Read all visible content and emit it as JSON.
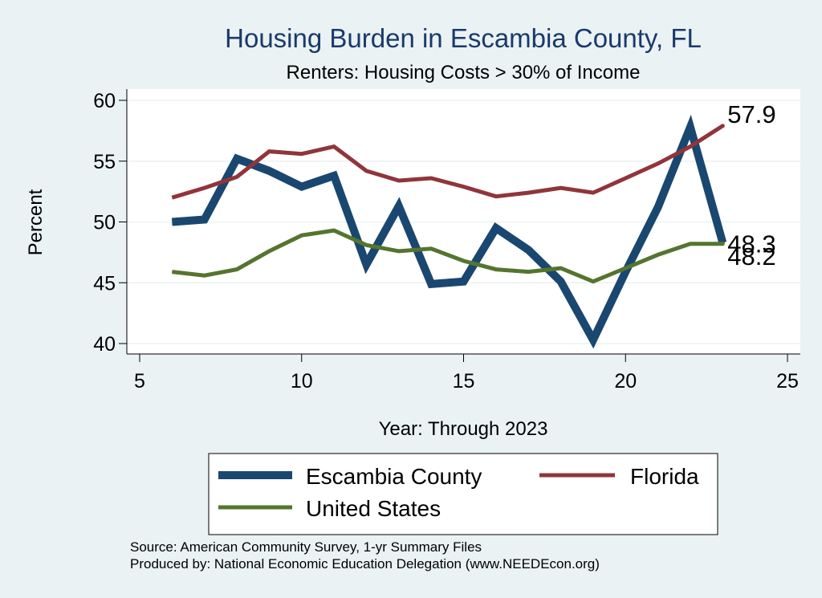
{
  "chart_data": {
    "type": "line",
    "title": "Housing Burden in Escambia County, FL",
    "subtitle": "Renters: Housing Costs > 30% of Income",
    "xlabel": "Year: Through 2023",
    "ylabel": "Percent",
    "xlim": [
      5,
      25
    ],
    "ylim": [
      40,
      60
    ],
    "xticks": [
      "5",
      "10",
      "15",
      "20",
      "25"
    ],
    "yticks": [
      "40",
      "45",
      "50",
      "55",
      "60"
    ],
    "x": [
      6,
      7,
      8,
      9,
      10,
      11,
      12,
      13,
      14,
      15,
      16,
      17,
      18,
      19,
      20,
      21,
      22,
      23
    ],
    "series": [
      {
        "name": "Escambia County",
        "color": "#1a476f",
        "values": [
          50.0,
          50.2,
          55.2,
          54.2,
          52.9,
          53.8,
          46.5,
          51.3,
          44.9,
          45.1,
          49.5,
          47.7,
          45.1,
          40.3,
          45.9,
          51.2,
          57.8,
          48.3
        ],
        "end_label": "48.3"
      },
      {
        "name": "Florida",
        "color": "#90353b",
        "values": [
          52.0,
          52.8,
          53.7,
          55.8,
          55.6,
          56.2,
          54.2,
          53.4,
          53.6,
          52.9,
          52.1,
          52.4,
          52.8,
          52.4,
          53.6,
          54.8,
          56.2,
          57.9
        ],
        "end_label": "57.9"
      },
      {
        "name": "United States",
        "color": "#55752f",
        "values": [
          45.9,
          45.6,
          46.1,
          47.6,
          48.9,
          49.3,
          48.1,
          47.6,
          47.8,
          46.8,
          46.1,
          45.9,
          46.2,
          45.1,
          46.2,
          47.3,
          48.2,
          48.2
        ],
        "end_label": "48.2"
      }
    ],
    "legend": {
      "position": "bottom",
      "entries": [
        "Escambia County",
        "Florida",
        "United States"
      ]
    }
  },
  "source_line": "Source: American Community Survey, 1-yr Summary Files",
  "produced_line": "Produced by: National Economic Education Delegation (www.NEEDEcon.org)"
}
